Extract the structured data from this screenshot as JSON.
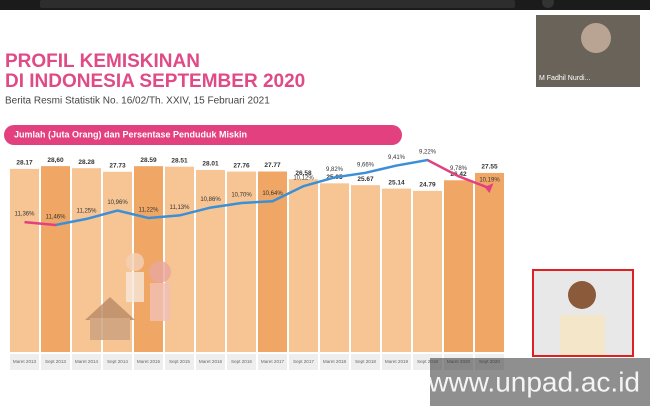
{
  "slide": {
    "title_line1": "PROFIL KEMISKINAN",
    "title_line2": "DI INDONESIA SEPTEMBER 2020",
    "subtitle": "Berita Resmi Statistik No. 16/02/Th. XXIV, 15 Februari 2021"
  },
  "participants": [
    "M Fadhil Nurdi..."
  ],
  "watermark": "www.unpad.ac.id",
  "chart_data": {
    "type": "bar-line",
    "title": "Jumlah (Juta Orang) dan Persentase Penduduk Miskin",
    "categories": [
      "Maret 2013",
      "Sept 2013",
      "Maret 2014",
      "Sept 2014",
      "Maret 2015",
      "Sept 2015",
      "Maret 2016",
      "Sept 2016",
      "Maret 2017",
      "Sept 2017",
      "Maret 2018",
      "Sept 2018",
      "Maret 2019",
      "Sept 2019",
      "Maret 2020",
      "Sept 2020"
    ],
    "series": [
      {
        "values": [
          28.17,
          28.6,
          28.28,
          27.73,
          28.59,
          28.51,
          28.01,
          27.76,
          27.77,
          26.58,
          25.95,
          25.67,
          25.14,
          24.79,
          26.42,
          27.55
        ],
        "value_labels": [
          "28.17",
          "28,60",
          "28.28",
          "27.73",
          "28.59",
          "28.51",
          "28.01",
          "27.76",
          "27.77",
          "26.58",
          "25.95",
          "25.67",
          "25.14",
          "24.79",
          "26.42",
          "27.55"
        ],
        "colors": [
          "#f7c594",
          "#f0a765",
          "#f7c594",
          "#f7c594",
          "#f0a765",
          "#f7c594",
          "#f7c594",
          "#f7c594",
          "#f0a765",
          "#f7c594",
          "#f7c594",
          "#f7c594",
          "#f7c594",
          "#f7c594",
          "#f0a765",
          "#f0a765"
        ]
      },
      {
        "values": [
          11.36,
          11.46,
          11.25,
          10.96,
          11.22,
          11.13,
          10.86,
          10.7,
          10.64,
          10.12,
          9.82,
          9.66,
          9.41,
          9.22,
          9.78,
          10.19
        ],
        "value_labels": [
          "11,36%",
          "11,46%",
          "11,25%",
          "10,96%",
          "11,22%",
          "11,13%",
          "10,86%",
          "10,70%",
          "10,64%",
          "10,12%",
          "9,82%",
          "9,66%",
          "9,41%",
          "9,22%",
          "9,78%",
          "10,19%"
        ],
        "color": "#3b8fd6",
        "accent_color": "#e2407f"
      }
    ]
  }
}
